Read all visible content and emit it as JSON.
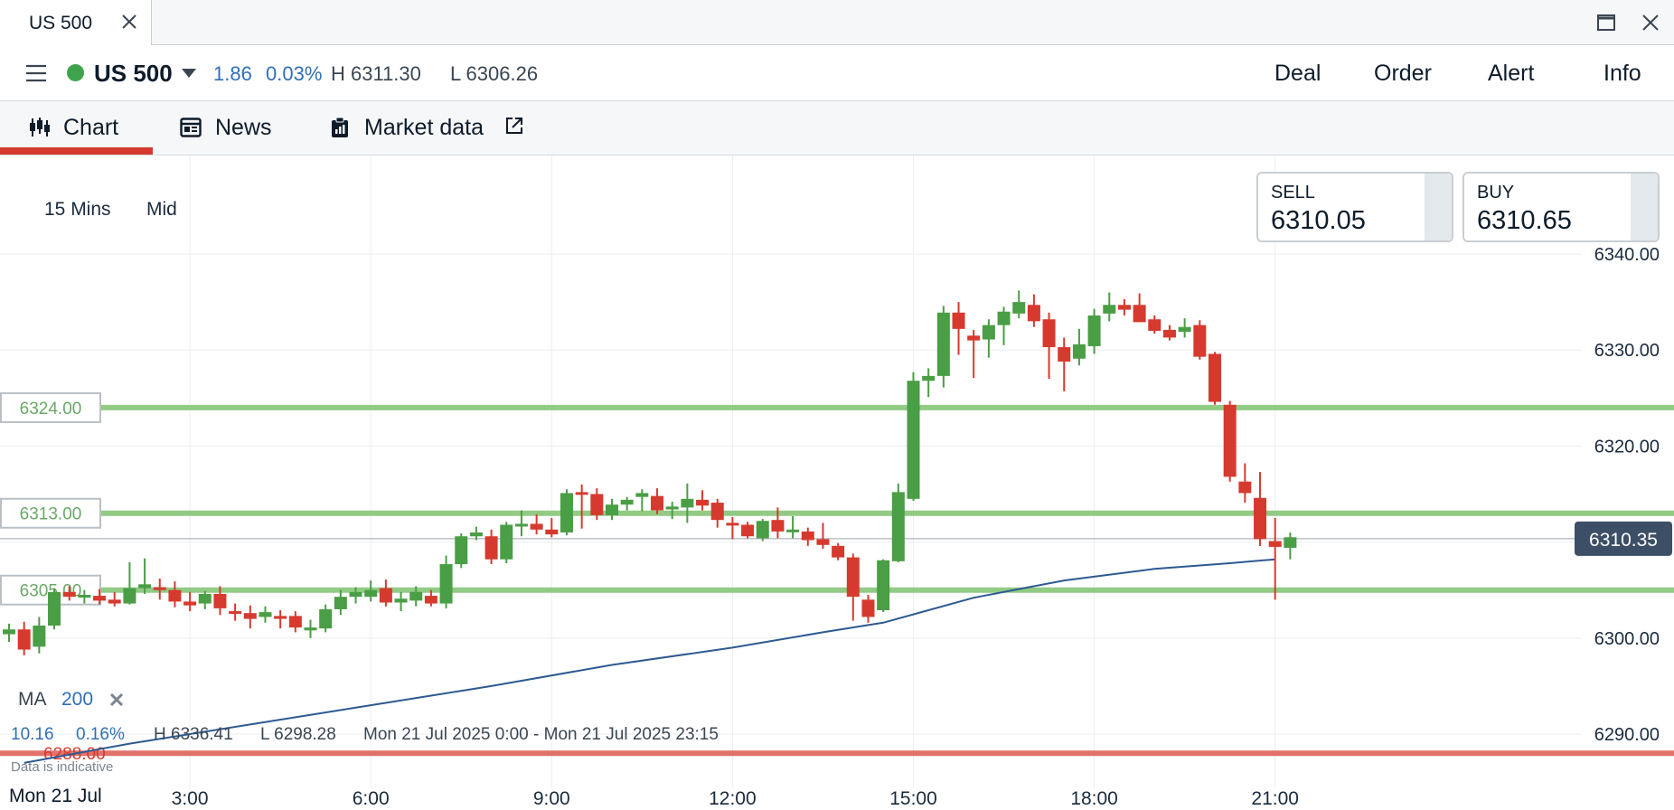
{
  "window": {
    "tab_title": "US 500"
  },
  "instrument": {
    "name": "US 500",
    "change": "1.86",
    "change_pct": "0.03%",
    "high": "H 6311.30",
    "low": "L 6306.26"
  },
  "actions": [
    "Deal",
    "Order",
    "Alert",
    "Info"
  ],
  "views": [
    {
      "label": "Chart",
      "icon": "candlestick-chart-icon"
    },
    {
      "label": "News",
      "icon": "newspaper-icon"
    },
    {
      "label": "Market data",
      "icon": "clipboard-icon",
      "external": "external-link-icon"
    }
  ],
  "chart_settings": {
    "interval": "15 Mins",
    "price_type": "Mid"
  },
  "quotes": {
    "sell_label": "SELL",
    "sell_value": "6310.05",
    "buy_label": "BUY",
    "buy_value": "6310.65"
  },
  "indicator": {
    "name": "MA",
    "period": "200"
  },
  "session_stats": {
    "change": "10.16",
    "change_pct": "0.16%",
    "high": "H 6336.41",
    "low": "L 6298.28",
    "range": "Mon 21 Jul 2025 0:00 - Mon 21 Jul 2025 23:15"
  },
  "notice": "Data is indicative",
  "date_label": "Mon 21 Jul",
  "colors": {
    "up": "#4a9e45",
    "down": "#d63a2f",
    "level_line": "#8cc97e",
    "ma_line": "#2d5a91",
    "price_tag": "#3c4f66"
  },
  "chart_data": {
    "type": "candlestick",
    "y_range": [
      6285,
      6350
    ],
    "y_ticks": [
      "6340.00",
      "6330.00",
      "6320.00",
      "6310.00",
      "6300.00",
      "6290.00"
    ],
    "x_range": [
      0,
      23.25
    ],
    "x_ticks": [
      "3:00",
      "6:00",
      "9:00",
      "12:00",
      "15:00",
      "18:00",
      "21:00"
    ],
    "current_price": "6310.35",
    "levels": [
      {
        "label": "6324.00",
        "value": 6324,
        "color": "green"
      },
      {
        "label": "6313.00",
        "value": 6313,
        "color": "green"
      },
      {
        "label": "6305.00",
        "value": 6305,
        "color": "green"
      },
      {
        "label": "6288.00",
        "value": 6288,
        "color": "red"
      }
    ],
    "candles": [
      [
        0.0,
        6300.4,
        6301.5,
        6299.6,
        6300.9
      ],
      [
        0.25,
        6300.9,
        6301.7,
        6298.2,
        6298.8
      ],
      [
        0.5,
        6299.1,
        6302.2,
        6298.4,
        6301.3
      ],
      [
        0.75,
        6301.3,
        6305.2,
        6300.9,
        6304.8
      ],
      [
        1.0,
        6304.8,
        6305.4,
        6303.9,
        6304.3
      ],
      [
        1.25,
        6304.3,
        6305.0,
        6303.6,
        6304.5
      ],
      [
        1.5,
        6304.4,
        6305.1,
        6303.5,
        6303.9
      ],
      [
        1.75,
        6304.0,
        6304.8,
        6303.3,
        6303.6
      ],
      [
        2.0,
        6303.6,
        6307.9,
        6303.5,
        6305.2
      ],
      [
        2.25,
        6305.2,
        6308.3,
        6304.6,
        6305.6
      ],
      [
        2.5,
        6305.3,
        6306.2,
        6304.0,
        6305.0
      ],
      [
        2.75,
        6305.0,
        6305.9,
        6303.2,
        6303.8
      ],
      [
        3.0,
        6303.8,
        6304.8,
        6302.8,
        6303.4
      ],
      [
        3.25,
        6303.6,
        6304.9,
        6303.0,
        6304.6
      ],
      [
        3.5,
        6304.6,
        6305.4,
        6302.4,
        6303.1
      ],
      [
        3.75,
        6302.8,
        6303.6,
        6301.8,
        6302.6
      ],
      [
        4.0,
        6302.6,
        6303.4,
        6301.0,
        6302.0
      ],
      [
        4.25,
        6302.2,
        6303.3,
        6301.6,
        6302.7
      ],
      [
        4.5,
        6302.3,
        6302.9,
        6301.0,
        6302.0
      ],
      [
        4.75,
        6302.3,
        6302.8,
        6300.6,
        6301.1
      ],
      [
        5.0,
        6300.8,
        6301.9,
        6300.0,
        6301.1
      ],
      [
        5.25,
        6301.0,
        6303.5,
        6300.6,
        6303.0
      ],
      [
        5.5,
        6303.0,
        6305.0,
        6302.4,
        6304.3
      ],
      [
        5.75,
        6304.3,
        6305.3,
        6303.6,
        6304.8
      ],
      [
        6.0,
        6304.3,
        6306.0,
        6303.8,
        6305.0
      ],
      [
        6.25,
        6305.2,
        6306.1,
        6303.3,
        6303.7
      ],
      [
        6.5,
        6303.7,
        6304.8,
        6302.8,
        6304.1
      ],
      [
        6.75,
        6303.9,
        6305.4,
        6303.3,
        6304.8
      ],
      [
        7.0,
        6304.4,
        6305.0,
        6303.3,
        6303.6
      ],
      [
        7.25,
        6303.6,
        6308.6,
        6303.1,
        6307.7
      ],
      [
        7.5,
        6307.7,
        6310.9,
        6307.3,
        6310.6
      ],
      [
        7.75,
        6310.6,
        6311.6,
        6310.2,
        6311.0
      ],
      [
        8.0,
        6310.6,
        6311.3,
        6307.7,
        6308.2
      ],
      [
        8.25,
        6308.2,
        6312.1,
        6307.8,
        6311.8
      ],
      [
        8.5,
        6311.8,
        6313.3,
        6310.6,
        6311.9
      ],
      [
        8.75,
        6311.9,
        6312.9,
        6310.8,
        6311.3
      ],
      [
        9.0,
        6311.3,
        6312.5,
        6310.5,
        6310.8
      ],
      [
        9.25,
        6311.0,
        6315.5,
        6310.7,
        6315.1
      ],
      [
        9.5,
        6315.2,
        6316.0,
        6311.4,
        6315.0
      ],
      [
        9.75,
        6315.0,
        6315.6,
        6312.3,
        6312.8
      ],
      [
        10.0,
        6312.8,
        6314.5,
        6312.3,
        6313.9
      ],
      [
        10.25,
        6313.9,
        6314.7,
        6313.3,
        6314.4
      ],
      [
        10.5,
        6314.7,
        6315.5,
        6313.2,
        6315.1
      ],
      [
        10.75,
        6314.8,
        6315.6,
        6312.9,
        6313.3
      ],
      [
        11.0,
        6313.4,
        6314.2,
        6312.4,
        6313.7
      ],
      [
        11.25,
        6313.6,
        6316.1,
        6312.0,
        6314.5
      ],
      [
        11.5,
        6314.4,
        6315.4,
        6313.3,
        6313.8
      ],
      [
        11.75,
        6314.1,
        6314.5,
        6311.5,
        6312.3
      ],
      [
        12.0,
        6312.0,
        6312.6,
        6310.3,
        6311.9
      ],
      [
        12.25,
        6311.8,
        6312.1,
        6310.4,
        6310.6
      ],
      [
        12.5,
        6310.4,
        6312.4,
        6310.1,
        6312.2
      ],
      [
        12.75,
        6312.3,
        6313.6,
        6310.4,
        6311.1
      ],
      [
        13.0,
        6311.2,
        6312.7,
        6310.4,
        6311.3
      ],
      [
        13.25,
        6311.1,
        6311.5,
        6309.6,
        6310.2
      ],
      [
        13.5,
        6310.3,
        6312.0,
        6309.3,
        6309.7
      ],
      [
        13.75,
        6309.6,
        6309.9,
        6308.1,
        6308.4
      ],
      [
        14.0,
        6308.4,
        6308.8,
        6301.8,
        6304.3
      ],
      [
        14.25,
        6304.0,
        6304.5,
        6301.6,
        6302.2
      ],
      [
        14.5,
        6302.9,
        6308.2,
        6302.7,
        6308.1
      ],
      [
        14.75,
        6308.0,
        6316.1,
        6307.9,
        6315.2
      ],
      [
        15.0,
        6314.5,
        6327.7,
        6314.3,
        6326.8
      ],
      [
        15.25,
        6326.8,
        6328.1,
        6325.1,
        6327.3
      ],
      [
        15.5,
        6327.3,
        6334.6,
        6326.1,
        6333.9
      ],
      [
        15.75,
        6333.9,
        6335.0,
        6329.5,
        6332.2
      ],
      [
        16.0,
        6331.5,
        6332.1,
        6327.1,
        6331.0
      ],
      [
        16.25,
        6331.1,
        6333.2,
        6329.2,
        6332.6
      ],
      [
        16.5,
        6332.6,
        6334.5,
        6330.5,
        6334.0
      ],
      [
        16.75,
        6333.8,
        6336.2,
        6333.3,
        6335.0
      ],
      [
        17.0,
        6334.7,
        6335.8,
        6332.4,
        6333.0
      ],
      [
        17.25,
        6333.2,
        6333.9,
        6327.0,
        6330.3
      ],
      [
        17.5,
        6330.3,
        6331.3,
        6325.7,
        6328.8
      ],
      [
        17.75,
        6329.1,
        6332.2,
        6328.4,
        6330.6
      ],
      [
        18.0,
        6330.4,
        6334.3,
        6329.6,
        6333.6
      ],
      [
        18.25,
        6333.8,
        6336.0,
        6333.0,
        6334.7
      ],
      [
        18.5,
        6334.7,
        6335.3,
        6333.6,
        6334.2
      ],
      [
        18.75,
        6334.7,
        6335.9,
        6333.0,
        6332.9
      ],
      [
        19.0,
        6333.2,
        6333.6,
        6331.7,
        6332.0
      ],
      [
        19.25,
        6332.1,
        6332.6,
        6331.0,
        6331.3
      ],
      [
        19.5,
        6331.9,
        6333.3,
        6331.3,
        6332.4
      ],
      [
        19.75,
        6332.6,
        6333.1,
        6329.0,
        6329.3
      ],
      [
        20.0,
        6329.6,
        6329.8,
        6324.3,
        6324.6
      ],
      [
        20.25,
        6324.3,
        6324.7,
        6316.3,
        6316.8
      ],
      [
        20.5,
        6316.3,
        6318.2,
        6314.1,
        6315.1
      ],
      [
        20.75,
        6314.6,
        6317.3,
        6309.6,
        6310.3
      ],
      [
        21.0,
        6310.1,
        6312.5,
        6304.0,
        6309.5
      ],
      [
        21.25,
        6309.4,
        6311.0,
        6308.2,
        6310.5
      ]
    ],
    "ma_curve": [
      [
        0.25,
        6287.0
      ],
      [
        2.0,
        6289.0
      ],
      [
        4.0,
        6291.0
      ],
      [
        6.0,
        6293.0
      ],
      [
        8.0,
        6295.0
      ],
      [
        10.0,
        6297.2
      ],
      [
        12.0,
        6299.0
      ],
      [
        13.5,
        6300.6
      ],
      [
        14.5,
        6301.6
      ],
      [
        16.0,
        6304.2
      ],
      [
        17.5,
        6306.0
      ],
      [
        19.0,
        6307.2
      ],
      [
        20.25,
        6307.8
      ],
      [
        21.0,
        6308.2
      ]
    ]
  }
}
